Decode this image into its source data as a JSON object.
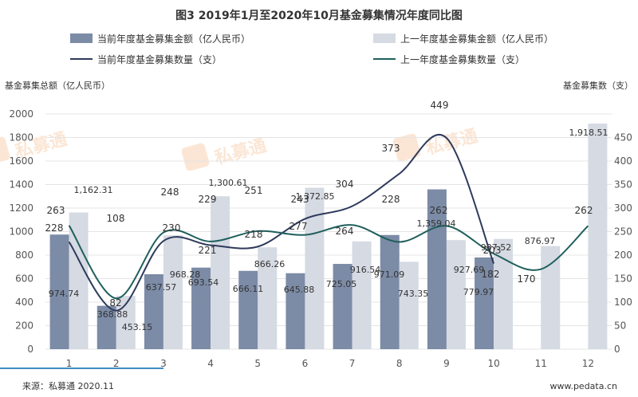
{
  "chart_data": {
    "type": "bar",
    "title": "图3  2019年1月至2020年10月基金募集情况年度同比图",
    "ylabel_left": "基金募集总额（亿人民币）",
    "ylabel_right": "基金募集数（支）",
    "ylim_left": [
      0,
      2000
    ],
    "ylim_right": [
      0,
      500
    ],
    "yticks_left": [
      0,
      200,
      400,
      600,
      800,
      1000,
      1200,
      1400,
      1600,
      1800,
      2000
    ],
    "yticks_right": [
      0,
      50,
      100,
      150,
      200,
      250,
      300,
      350,
      400,
      450
    ],
    "categories": [
      "1",
      "2",
      "3",
      "4",
      "5",
      "6",
      "7",
      "8",
      "9",
      "10",
      "11",
      "12"
    ],
    "bar_series": [
      {
        "name": "当前年度基金募集金额（亿人民币）",
        "color": "#7C8BA6",
        "values": [
          974.74,
          368.88,
          637.57,
          693.54,
          666.11,
          645.88,
          725.05,
          971.09,
          1359.04,
          779.97,
          null,
          null
        ],
        "labels": [
          "974.74",
          "368.88",
          "637.57",
          "693.54",
          "666.11",
          "645.88",
          "725.05",
          "971.09",
          "1,359.04",
          "779.97",
          "",
          ""
        ]
      },
      {
        "name": "上一年度基金募集金额（亿人民币）",
        "color": "#D5DAE3",
        "values": [
          1162.31,
          453.15,
          968.28,
          1300.61,
          866.26,
          1372.85,
          916.54,
          743.35,
          927.69,
          937.52,
          876.97,
          1918.51
        ],
        "labels": [
          "1,162.31",
          "453.15",
          "968.28",
          "1,300.61",
          "866.26",
          "1,372.85",
          "916.54",
          "743.35",
          "927.69",
          "937.52",
          "876.97",
          "1,918.51"
        ]
      }
    ],
    "line_series": [
      {
        "name": "当前年度基金募集数量（支）",
        "color": "#2F3B5C",
        "values": [
          228,
          82,
          230,
          221,
          218,
          277,
          304,
          373,
          449,
          182,
          null,
          null
        ],
        "labels": [
          "228",
          "82",
          "230",
          "221",
          "218",
          "277",
          "304",
          "373",
          "449",
          "182",
          "",
          ""
        ]
      },
      {
        "name": "上一年度基金募集数量（支）",
        "color": "#1E5F5C",
        "values": [
          263,
          108,
          248,
          229,
          251,
          243,
          264,
          228,
          262,
          203,
          170,
          262
        ],
        "labels": [
          "263",
          "108",
          "248",
          "229",
          "251",
          "243",
          "264",
          "228",
          "262",
          "203",
          "170",
          "262"
        ]
      }
    ],
    "legend_position": "top",
    "grid": true
  },
  "footer": {
    "source": "来源：私募通 2020.11",
    "website": "www.pedata.cn"
  },
  "watermark": {
    "text": "私募通",
    "color": "#F5B98A"
  }
}
